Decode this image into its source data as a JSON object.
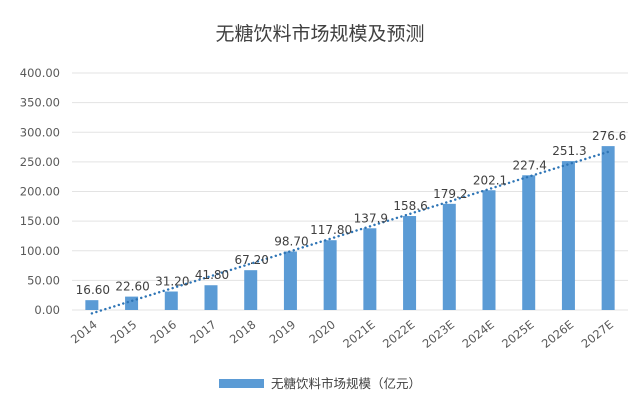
{
  "chart_data": {
    "type": "bar",
    "title": "无糖饮料市场规模及预测",
    "categories": [
      "2014",
      "2015",
      "2016",
      "2017",
      "2018",
      "2019",
      "2020",
      "2021E",
      "2022E",
      "2023E",
      "2024E",
      "2025E",
      "2026E",
      "2027E"
    ],
    "series": [
      {
        "name": "无糖饮料市场规模（亿元）",
        "values": [
          16.6,
          22.6,
          31.2,
          41.8,
          67.2,
          98.7,
          117.8,
          137.9,
          158.6,
          179.2,
          202.1,
          227.4,
          251.3,
          276.6
        ],
        "labels": [
          "16.60",
          "22.60",
          "31.20",
          "41.80",
          "67.20",
          "98.70",
          "117.80",
          "137.9",
          "158.6",
          "179.2",
          "202.1",
          "227.4",
          "251.3",
          "276.6"
        ]
      }
    ],
    "trendline": {
      "type": "linear",
      "style": "dotted"
    },
    "ylim": [
      0,
      400
    ],
    "yticks": [
      "0.00",
      "50.00",
      "100.00",
      "150.00",
      "200.00",
      "250.00",
      "300.00",
      "350.00",
      "400.00"
    ],
    "grid": true,
    "legend": "bottom",
    "colors": {
      "bar": "#5b9bd5",
      "trend": "#2e75b6"
    }
  }
}
